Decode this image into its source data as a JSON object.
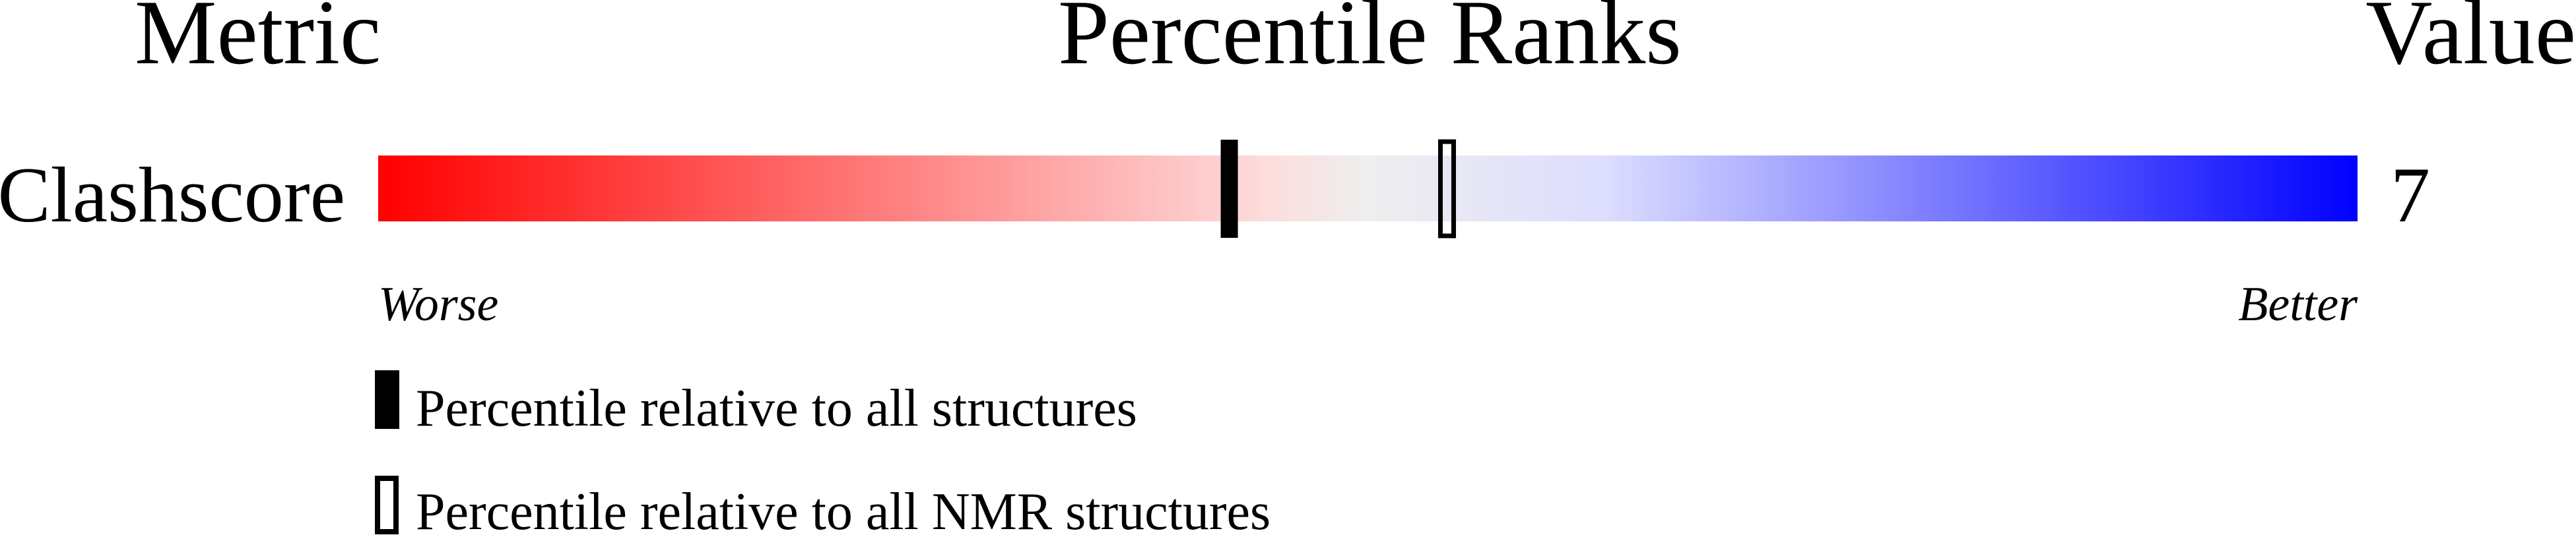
{
  "header": {
    "metric_label": "Metric",
    "ranks_label": "Percentile Ranks",
    "value_label": "Value"
  },
  "metrics": [
    {
      "name": "Clashscore",
      "value": "7",
      "percentile_all": 43,
      "percentile_nmr": 54
    }
  ],
  "scale": {
    "worse_label": "Worse",
    "better_label": "Better",
    "gradient_colors": [
      "#ff0000",
      "#fddddd",
      "#eeeeee",
      "#ddddff",
      "#0000ff"
    ]
  },
  "legend": {
    "all_label": "Percentile relative to all structures",
    "nmr_label": "Percentile relative to all NMR structures"
  }
}
